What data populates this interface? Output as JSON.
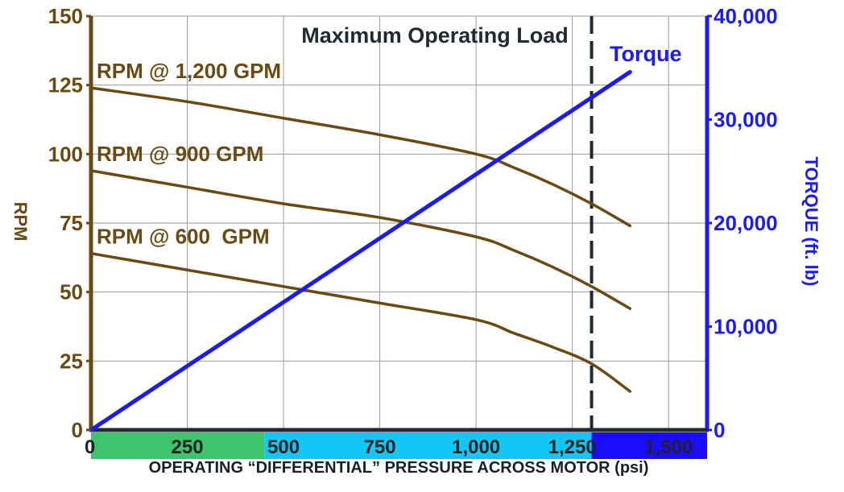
{
  "chart_data": {
    "type": "line",
    "title": "",
    "xlabel": "OPERATING “DIFFERENTIAL” PRESSURE ACROSS MOTOR (psi)",
    "ylabel": "RPM",
    "y2label": "TORQUE (ft. lb)",
    "xlim": [
      0,
      1600
    ],
    "ylim": [
      0,
      150
    ],
    "y2lim": [
      0,
      40000
    ],
    "x_ticks": [
      "0",
      "250",
      "500",
      "750",
      "1,000",
      "1,250",
      "1,500"
    ],
    "y_ticks": [
      "0",
      "25",
      "50",
      "75",
      "100",
      "125",
      "150"
    ],
    "y2_ticks": [
      "0",
      "10,000",
      "20,000",
      "30,000",
      "40,000"
    ],
    "grid": true,
    "series": [
      {
        "name": "RPM @ 1,200 GPM",
        "axis": "left",
        "color": "#6b4a12",
        "x": [
          0,
          250,
          500,
          750,
          1000,
          1100,
          1200,
          1300,
          1400
        ],
        "y": [
          124,
          119,
          113,
          107,
          100,
          95,
          89,
          82,
          74
        ]
      },
      {
        "name": "RPM @ 900 GPM",
        "axis": "left",
        "color": "#6b4a12",
        "x": [
          0,
          250,
          500,
          750,
          1000,
          1100,
          1200,
          1300,
          1400
        ],
        "y": [
          94,
          88,
          82,
          77,
          70,
          65,
          59,
          52,
          44
        ]
      },
      {
        "name": "RPM @ 600  GPM",
        "axis": "left",
        "color": "#6b4a12",
        "x": [
          0,
          250,
          500,
          750,
          1000,
          1100,
          1200,
          1300,
          1400
        ],
        "y": [
          64,
          58,
          52,
          46,
          40,
          35,
          30,
          24,
          14
        ]
      },
      {
        "name": "Torque",
        "axis": "right",
        "color": "#1a1aff",
        "x": [
          0,
          1400
        ],
        "y": [
          0,
          34600
        ]
      }
    ],
    "annotations": [
      {
        "text": "Maximum Operating Load",
        "x": 1300,
        "style": "dashed-vertical-line"
      }
    ],
    "x_bands": [
      {
        "from": 0,
        "to": 450,
        "color": "#3ec46d"
      },
      {
        "from": 450,
        "to": 1300,
        "color": "#12c6f5"
      },
      {
        "from": 1300,
        "to": 1600,
        "color": "#1a0dff"
      }
    ],
    "colors": {
      "rpm_axis": "#6b4a12",
      "torque_axis": "#1a1aff",
      "grid": "#9a9a9a",
      "annotation": "#1f2a33"
    }
  }
}
